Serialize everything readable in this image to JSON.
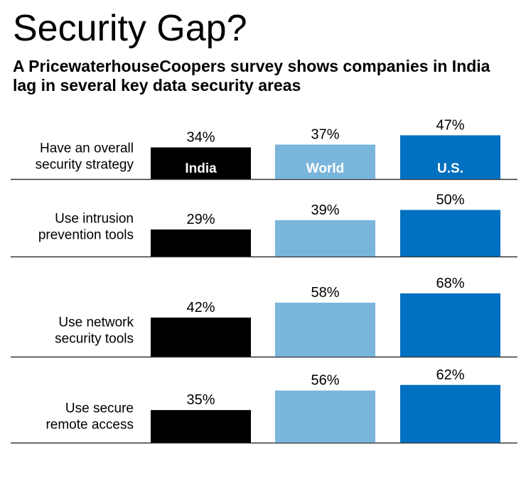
{
  "title": "Security Gap?",
  "subtitle": "A PricewaterhouseCoopers survey shows companies in India lag in several key data security areas",
  "colors": {
    "India": "#000000",
    "World": "#7ab5dc",
    "U.S.": "#0070c0",
    "divider": "#333333"
  },
  "chart_data": {
    "type": "bar",
    "orientation": "vertical",
    "categories": [
      [
        "Have an overall",
        "security strategy"
      ],
      [
        "Use intrusion",
        "prevention tools"
      ],
      [
        "Use network",
        "security tools"
      ],
      [
        "Use secure",
        "remote access"
      ]
    ],
    "series": [
      {
        "name": "India",
        "values": [
          34,
          29,
          42,
          35
        ]
      },
      {
        "name": "World",
        "values": [
          37,
          39,
          58,
          56
        ]
      },
      {
        "name": "U.S.",
        "values": [
          47,
          50,
          68,
          62
        ]
      }
    ],
    "value_suffix": "%",
    "legend": "series names printed inside the bars of the first group",
    "grid": false
  }
}
